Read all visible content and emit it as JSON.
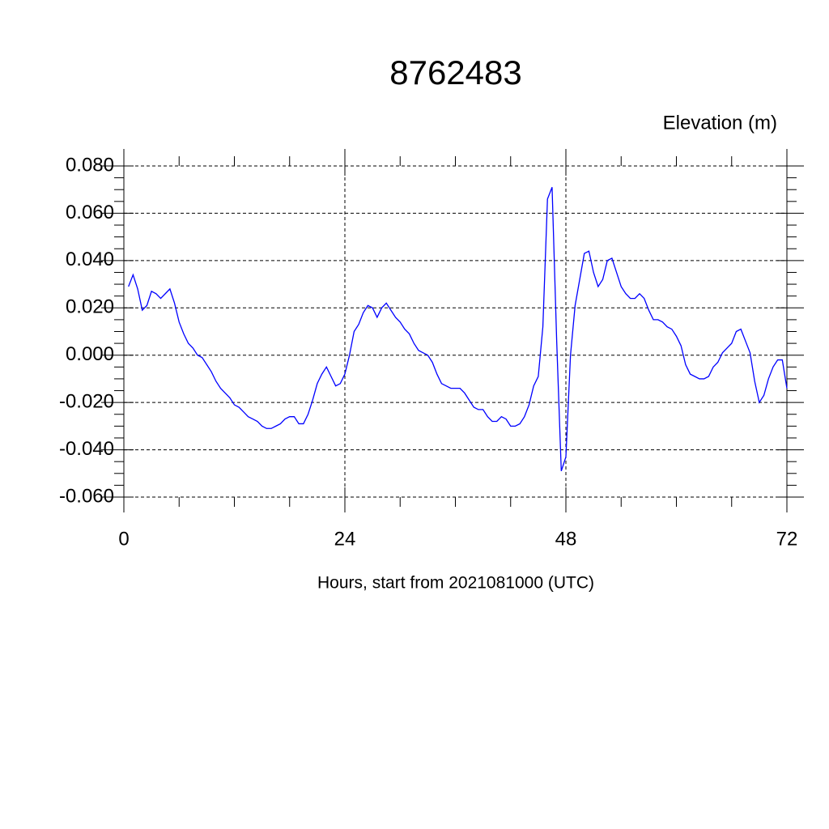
{
  "chart_data": {
    "type": "line",
    "title": "8762483",
    "y_label": "Elevation (m)",
    "x_label": "Hours, start from 2021081000 (UTC)",
    "xlim": [
      0,
      72
    ],
    "xticks": [
      0,
      24,
      48,
      72
    ],
    "ylim": [
      -0.06,
      0.08
    ],
    "yticks": [
      {
        "value": -0.06,
        "label": "-0.060"
      },
      {
        "value": -0.04,
        "label": "-0.040"
      },
      {
        "value": -0.02,
        "label": "-0.020"
      },
      {
        "value": 0,
        "label": "0.000"
      },
      {
        "value": 0.02,
        "label": "0.020"
      },
      {
        "value": 0.04,
        "label": "0.040"
      },
      {
        "value": 0.06,
        "label": "0.060"
      },
      {
        "value": 0.08,
        "label": "0.080"
      }
    ],
    "grid": true,
    "x": [
      0.5,
      1,
      1.5,
      2,
      2.5,
      3,
      3.5,
      4,
      4.5,
      5,
      5.5,
      6,
      6.5,
      7,
      7.5,
      8,
      8.5,
      9,
      9.5,
      10,
      10.5,
      11,
      11.5,
      12,
      12.5,
      13,
      13.5,
      14,
      14.5,
      15,
      15.5,
      16,
      16.5,
      17,
      17.5,
      18,
      18.5,
      19,
      19.5,
      20,
      20.5,
      21,
      21.5,
      22,
      22.5,
      23,
      23.5,
      24,
      24.5,
      25,
      25.5,
      26,
      26.5,
      27,
      27.5,
      28,
      28.5,
      29,
      29.5,
      30,
      30.5,
      31,
      31.5,
      32,
      32.5,
      33,
      33.5,
      34,
      34.5,
      35,
      35.5,
      36,
      36.5,
      37,
      37.5,
      38,
      38.5,
      39,
      39.5,
      40,
      40.5,
      41,
      41.5,
      42,
      42.5,
      43,
      43.5,
      44,
      44.5,
      45,
      45.5,
      46,
      46.5,
      47,
      47.5,
      48,
      48.5,
      49,
      49.5,
      50,
      50.5,
      51,
      51.5,
      52,
      52.5,
      53,
      53.5,
      54,
      54.5,
      55,
      55.5,
      56,
      56.5,
      57,
      57.5,
      58,
      58.5,
      59,
      59.5,
      60,
      60.5,
      61,
      61.5,
      62,
      62.5,
      63,
      63.5,
      64,
      64.5,
      65,
      65.5,
      66,
      66.5,
      67,
      67.5,
      68,
      68.5,
      69,
      69.5,
      70,
      70.5,
      71,
      71.5,
      72
    ],
    "series": [
      {
        "name": "Elevation",
        "color": "#0000ff",
        "values": [
          0.029,
          0.034,
          0.028,
          0.019,
          0.021,
          0.027,
          0.026,
          0.024,
          0.026,
          0.028,
          0.022,
          0.014,
          0.009,
          0.005,
          0.003,
          0.0,
          -0.001,
          -0.004,
          -0.007,
          -0.011,
          -0.014,
          -0.016,
          -0.018,
          -0.021,
          -0.022,
          -0.024,
          -0.026,
          -0.027,
          -0.028,
          -0.03,
          -0.031,
          -0.031,
          -0.03,
          -0.029,
          -0.027,
          -0.026,
          -0.026,
          -0.029,
          -0.029,
          -0.025,
          -0.019,
          -0.012,
          -0.008,
          -0.005,
          -0.009,
          -0.013,
          -0.012,
          -0.008,
          0.0,
          0.01,
          0.013,
          0.018,
          0.021,
          0.02,
          0.016,
          0.02,
          0.022,
          0.019,
          0.016,
          0.014,
          0.011,
          0.009,
          0.005,
          0.002,
          0.001,
          0.0,
          -0.003,
          -0.008,
          -0.012,
          -0.013,
          -0.014,
          -0.014,
          -0.014,
          -0.016,
          -0.019,
          -0.022,
          -0.023,
          -0.023,
          -0.026,
          -0.028,
          -0.028,
          -0.026,
          -0.027,
          -0.03,
          -0.03,
          -0.029,
          -0.026,
          -0.021,
          -0.013,
          -0.009,
          0.012,
          0.066,
          0.071,
          0.006,
          -0.049,
          -0.043,
          0.0,
          0.021,
          0.032,
          0.043,
          0.044,
          0.035,
          0.029,
          0.032,
          0.04,
          0.041,
          0.035,
          0.029,
          0.026,
          0.024,
          0.024,
          0.026,
          0.024,
          0.019,
          0.015,
          0.015,
          0.014,
          0.012,
          0.011,
          0.008,
          0.004,
          -0.004,
          -0.008,
          -0.009,
          -0.01,
          -0.01,
          -0.009,
          -0.005,
          -0.003,
          0.001,
          0.003,
          0.005,
          0.01,
          0.011,
          0.006,
          0.001,
          -0.011,
          -0.02,
          -0.017,
          -0.01,
          -0.005,
          -0.002,
          -0.002,
          -0.014
        ]
      }
    ]
  }
}
